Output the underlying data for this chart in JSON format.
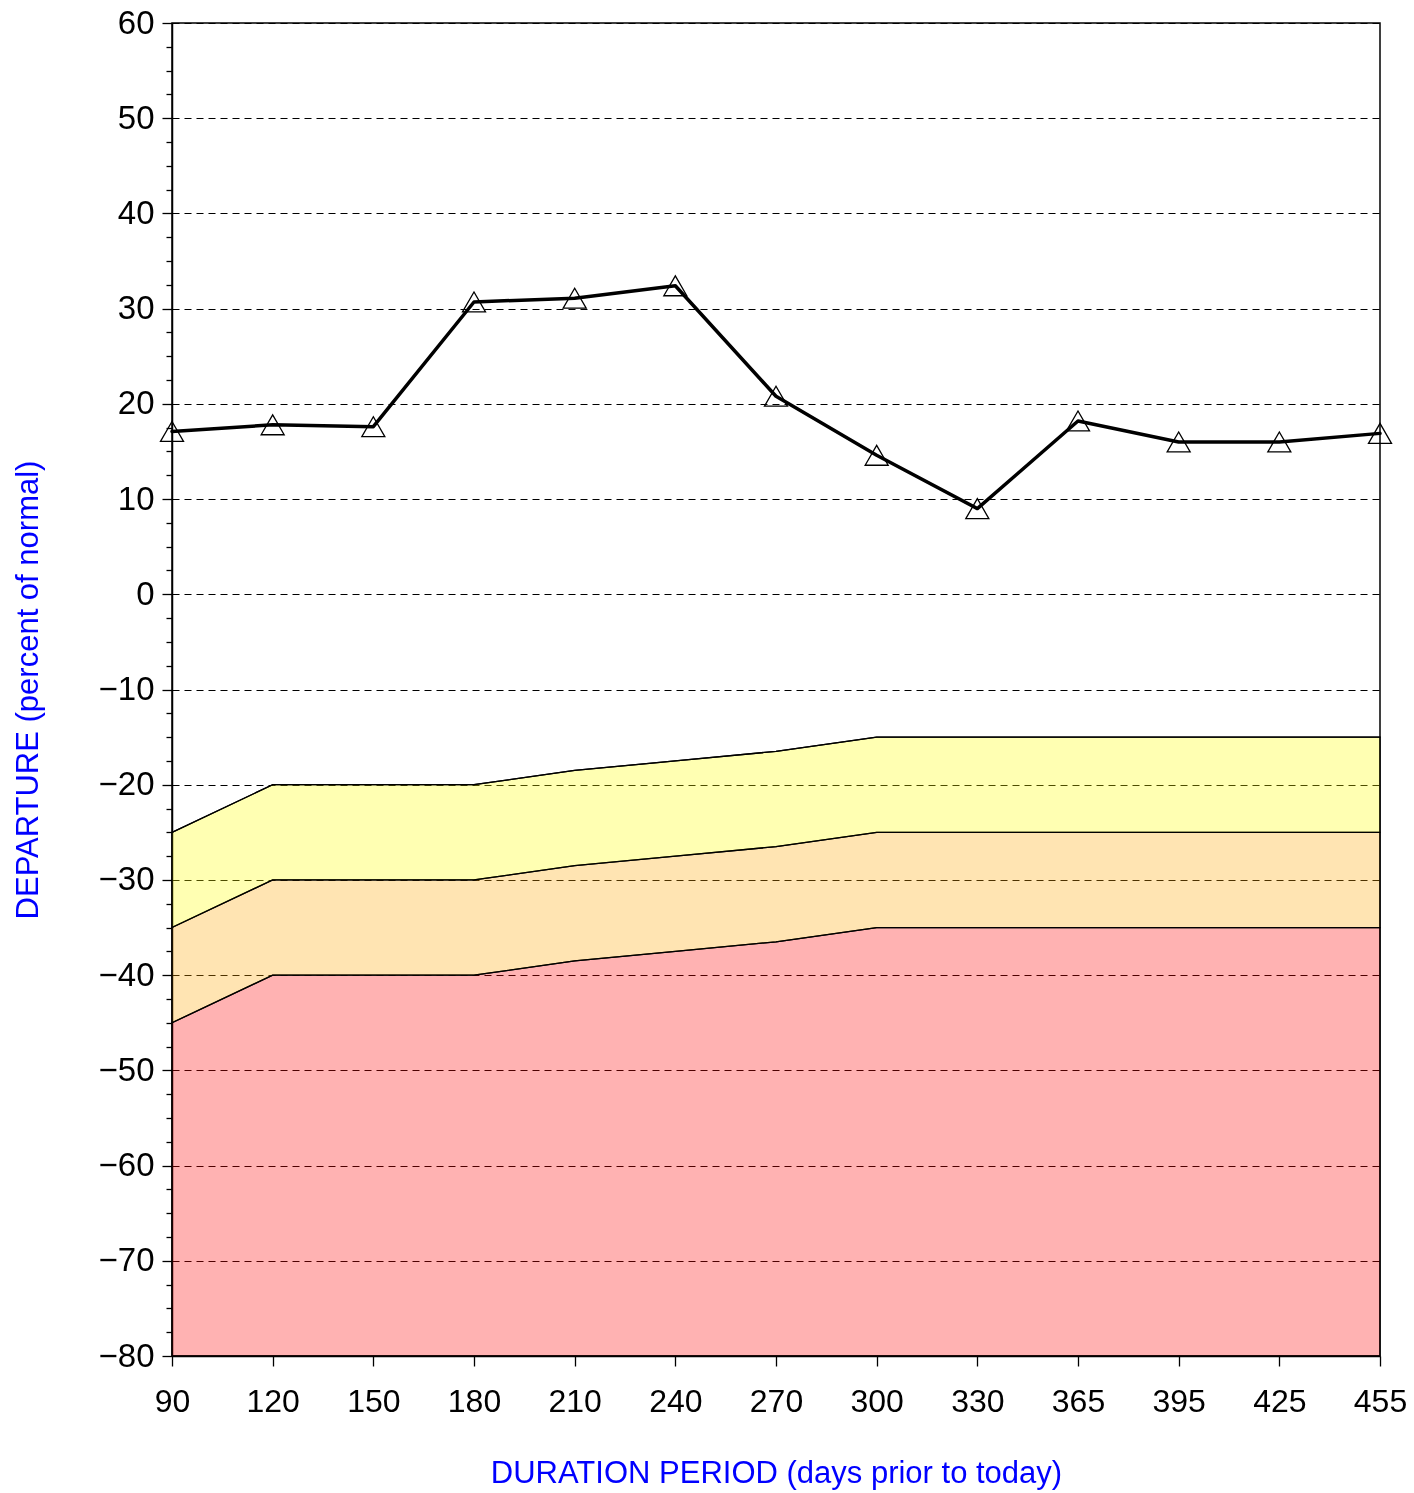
{
  "chart_data": {
    "type": "line",
    "xlabel": "DURATION PERIOD (days prior to today)",
    "ylabel": "DEPARTURE (percent of normal)",
    "categories": [
      "90",
      "120",
      "150",
      "180",
      "210",
      "240",
      "270",
      "300",
      "330",
      "365",
      "395",
      "425",
      "455"
    ],
    "ylim": [
      -80,
      60
    ],
    "yticks": [
      -80,
      {
        "value": -77.5,
        "label": null
      },
      {
        "value": -75,
        "label": null
      },
      {
        "value": -72.5,
        "label": null
      },
      -70,
      {
        "value": -67.5,
        "label": null
      },
      {
        "value": -65,
        "label": null
      },
      {
        "value": -62.5,
        "label": null
      },
      -60,
      {
        "value": -57.5,
        "label": null
      },
      {
        "value": -55,
        "label": null
      },
      {
        "value": -52.5,
        "label": null
      },
      -50,
      {
        "value": -47.5,
        "label": null
      },
      {
        "value": -45,
        "label": null
      },
      {
        "value": -42.5,
        "label": null
      },
      -40,
      {
        "value": -37.5,
        "label": null
      },
      {
        "value": -35,
        "label": null
      },
      {
        "value": -32.5,
        "label": null
      },
      -30,
      {
        "value": -27.5,
        "label": null
      },
      {
        "value": -25,
        "label": null
      },
      {
        "value": -22.5,
        "label": null
      },
      -20,
      {
        "value": -17.5,
        "label": null
      },
      {
        "value": -15,
        "label": null
      },
      {
        "value": -12.5,
        "label": null
      },
      -10,
      {
        "value": -7.5,
        "label": null
      },
      {
        "value": -5,
        "label": null
      },
      {
        "value": -2.5,
        "label": null
      },
      0,
      {
        "value": 2.5,
        "label": null
      },
      {
        "value": 5,
        "label": null
      },
      {
        "value": 7.5,
        "label": null
      },
      10,
      {
        "value": 12.5,
        "label": null
      },
      {
        "value": 15,
        "label": null
      },
      {
        "value": 17.5,
        "label": null
      },
      20,
      {
        "value": 22.5,
        "label": null
      },
      {
        "value": 25,
        "label": null
      },
      {
        "value": 27.5,
        "label": null
      },
      30,
      {
        "value": 32.5,
        "label": null
      },
      {
        "value": 35,
        "label": null
      },
      {
        "value": 37.5,
        "label": null
      },
      40,
      {
        "value": 42.5,
        "label": null
      },
      {
        "value": 45,
        "label": null
      },
      {
        "value": 47.5,
        "label": null
      },
      50,
      {
        "value": 52.5,
        "label": null
      },
      {
        "value": 55,
        "label": null
      },
      {
        "value": 57.5,
        "label": null
      },
      60
    ],
    "grid": "y",
    "series": [
      {
        "type": "area",
        "color": "#ff0000",
        "values": [
          -80,
          -80,
          -80,
          -80,
          -80,
          -80,
          -80,
          -80,
          -80,
          -80,
          -80,
          -80,
          -80
        ]
      },
      {
        "type": "area",
        "color": "#ffa500",
        "values": [
          -45,
          -40,
          -40,
          -40,
          -38.5,
          -37.5,
          -36.5,
          -35,
          -35,
          -35,
          -35,
          -35,
          -35
        ]
      },
      {
        "type": "area",
        "color": "#ffff00",
        "values": [
          -35,
          -30,
          -30,
          -30,
          -28.5,
          -27.5,
          -26.5,
          -25,
          -25,
          -25,
          -25,
          -25,
          -25
        ]
      },
      {
        "color": "#000000",
        "values": [
          -25,
          -20,
          -20,
          -20,
          -18.5,
          -17.5,
          -16.5,
          -15,
          -15,
          -15,
          -15,
          -15,
          -15
        ]
      },
      {
        "color": "#000000",
        "marker": "triangle",
        "values": [
          17.1,
          17.8,
          17.6,
          30.7,
          31.1,
          32.4,
          20.8,
          14.6,
          9.0,
          18.2,
          16.0,
          16.0,
          16.9
        ]
      }
    ]
  }
}
